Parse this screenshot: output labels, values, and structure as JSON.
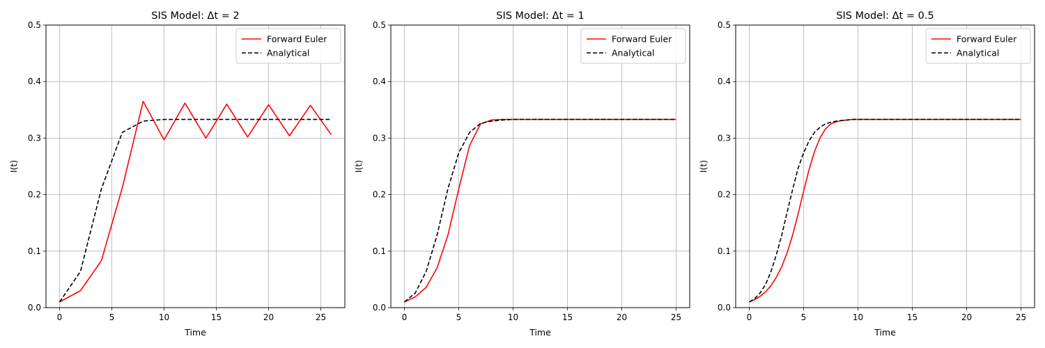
{
  "chart_data": [
    {
      "type": "line",
      "title": "SIS Model: Δt = 2",
      "xlabel": "Time",
      "ylabel": "I(t)",
      "xlim": [
        -1.3,
        27.3
      ],
      "ylim": [
        0,
        0.5
      ],
      "xticks": [
        0,
        5,
        10,
        15,
        20,
        25
      ],
      "yticks": [
        0.0,
        0.1,
        0.2,
        0.3,
        0.4,
        0.5
      ],
      "grid": true,
      "legend_position": "top-right",
      "series": [
        {
          "name": "Forward Euler",
          "color": "#ff0000",
          "style": "solid",
          "x": [
            0,
            2,
            4,
            6,
            8,
            10,
            12,
            14,
            16,
            18,
            20,
            22,
            24,
            26
          ],
          "y": [
            0.01,
            0.03,
            0.083,
            0.212,
            0.365,
            0.297,
            0.362,
            0.3,
            0.36,
            0.302,
            0.359,
            0.304,
            0.358,
            0.306
          ]
        },
        {
          "name": "Analytical",
          "color": "#000000",
          "style": "dashed",
          "x": [
            0,
            2,
            4,
            6,
            8,
            10,
            12,
            14,
            16,
            18,
            20,
            22,
            24,
            26
          ],
          "y": [
            0.01,
            0.064,
            0.21,
            0.31,
            0.33,
            0.333,
            0.333,
            0.333,
            0.333,
            0.333,
            0.333,
            0.333,
            0.333,
            0.333
          ]
        }
      ]
    },
    {
      "type": "line",
      "title": "SIS Model: Δt = 1",
      "xlabel": "Time",
      "ylabel": "I(t)",
      "xlim": [
        -1.25,
        26.25
      ],
      "ylim": [
        0,
        0.5
      ],
      "xticks": [
        0,
        5,
        10,
        15,
        20,
        25
      ],
      "yticks": [
        0.0,
        0.1,
        0.2,
        0.3,
        0.4,
        0.5
      ],
      "grid": true,
      "legend_position": "top-right",
      "series": [
        {
          "name": "Forward Euler",
          "color": "#ff0000",
          "style": "solid",
          "x": [
            0,
            1,
            2,
            3,
            4,
            5,
            6,
            7,
            8,
            9,
            10,
            11,
            12,
            13,
            14,
            15,
            16,
            17,
            18,
            19,
            20,
            21,
            22,
            23,
            24,
            25
          ],
          "y": [
            0.01,
            0.019,
            0.036,
            0.07,
            0.128,
            0.21,
            0.287,
            0.325,
            0.332,
            0.333,
            0.333,
            0.333,
            0.333,
            0.333,
            0.333,
            0.333,
            0.333,
            0.333,
            0.333,
            0.333,
            0.333,
            0.333,
            0.333,
            0.333,
            0.333,
            0.333
          ]
        },
        {
          "name": "Analytical",
          "color": "#000000",
          "style": "dashed",
          "x": [
            0,
            1,
            2,
            3,
            4,
            5,
            6,
            7,
            8,
            9,
            10,
            11,
            12,
            13,
            14,
            15,
            16,
            17,
            18,
            19,
            20,
            21,
            22,
            23,
            24,
            25
          ],
          "y": [
            0.01,
            0.026,
            0.064,
            0.128,
            0.21,
            0.274,
            0.31,
            0.326,
            0.33,
            0.332,
            0.333,
            0.333,
            0.333,
            0.333,
            0.333,
            0.333,
            0.333,
            0.333,
            0.333,
            0.333,
            0.333,
            0.333,
            0.333,
            0.333,
            0.333,
            0.333
          ]
        }
      ]
    },
    {
      "type": "line",
      "title": "SIS Model: Δt = 0.5",
      "xlabel": "Time",
      "ylabel": "I(t)",
      "xlim": [
        -1.25,
        26.25
      ],
      "ylim": [
        0,
        0.5
      ],
      "xticks": [
        0,
        5,
        10,
        15,
        20,
        25
      ],
      "yticks": [
        0.0,
        0.1,
        0.2,
        0.3,
        0.4,
        0.5
      ],
      "grid": true,
      "legend_position": "top-right",
      "series": [
        {
          "name": "Forward Euler",
          "color": "#ff0000",
          "style": "solid",
          "x": [
            0,
            0.5,
            1,
            1.5,
            2,
            2.5,
            3,
            3.5,
            4,
            4.5,
            5,
            5.5,
            6,
            6.5,
            7,
            7.5,
            8,
            8.5,
            9,
            9.5,
            10,
            11,
            12,
            13,
            14,
            15,
            16,
            17,
            18,
            19,
            20,
            21,
            22,
            23,
            24,
            25
          ],
          "y": [
            0.01,
            0.014,
            0.02,
            0.028,
            0.039,
            0.054,
            0.073,
            0.098,
            0.129,
            0.166,
            0.206,
            0.244,
            0.276,
            0.3,
            0.316,
            0.325,
            0.329,
            0.331,
            0.332,
            0.333,
            0.333,
            0.333,
            0.333,
            0.333,
            0.333,
            0.333,
            0.333,
            0.333,
            0.333,
            0.333,
            0.333,
            0.333,
            0.333,
            0.333,
            0.333,
            0.333
          ]
        },
        {
          "name": "Analytical",
          "color": "#000000",
          "style": "dashed",
          "x": [
            0,
            0.5,
            1,
            1.5,
            2,
            2.5,
            3,
            3.5,
            4,
            4.5,
            5,
            5.5,
            6,
            6.5,
            7,
            7.5,
            8,
            8.5,
            9,
            9.5,
            10,
            11,
            12,
            13,
            14,
            15,
            16,
            17,
            18,
            19,
            20,
            21,
            22,
            23,
            24,
            25
          ],
          "y": [
            0.01,
            0.016,
            0.026,
            0.041,
            0.064,
            0.094,
            0.129,
            0.17,
            0.21,
            0.247,
            0.274,
            0.295,
            0.31,
            0.319,
            0.325,
            0.328,
            0.33,
            0.331,
            0.332,
            0.333,
            0.333,
            0.333,
            0.333,
            0.333,
            0.333,
            0.333,
            0.333,
            0.333,
            0.333,
            0.333,
            0.333,
            0.333,
            0.333,
            0.333,
            0.333,
            0.333
          ]
        }
      ]
    }
  ]
}
